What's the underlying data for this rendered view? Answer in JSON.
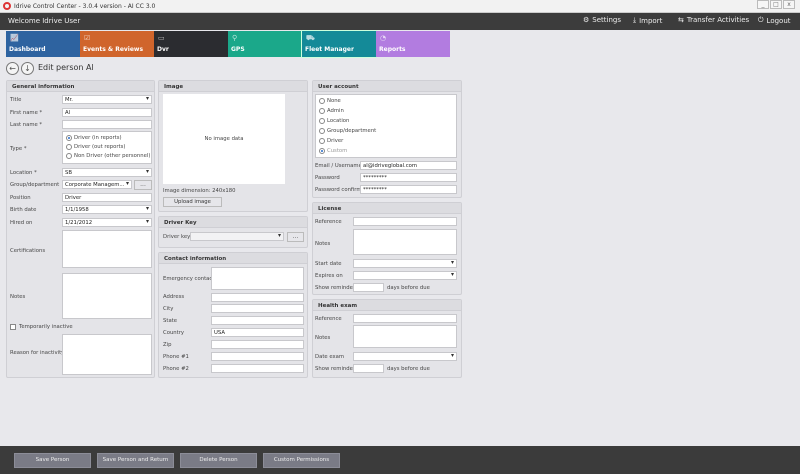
{
  "window": {
    "title": "Idrive Control Center - 3.0.4 version - AI CC 3.0",
    "minimize": "_",
    "maximize": "□",
    "close": "x"
  },
  "header": {
    "welcome": "Welcome Idrive User",
    "settings": "Settings",
    "import": "Import",
    "transfer": "Transfer Activities",
    "logout": "Logout"
  },
  "tiles": [
    {
      "label": "Dashboard",
      "color": "#2e63a0",
      "icon": "chart-icon"
    },
    {
      "label": "Events & Reviews",
      "color": "#d0652c",
      "icon": "clipboard-icon"
    },
    {
      "label": "Dvr",
      "color": "#2b2c30",
      "icon": "dvr-icon"
    },
    {
      "label": "GPS",
      "color": "#1ba88a",
      "icon": "map-pin-icon"
    },
    {
      "label": "Fleet Manager",
      "color": "#148a98",
      "icon": "truck-icon"
    },
    {
      "label": "Reports",
      "color": "#b27ce0",
      "icon": "pie-chart-icon"
    }
  ],
  "page": {
    "title": "Edit person Al"
  },
  "general": {
    "heading": "General information",
    "title_label": "Title",
    "title_value": "Mr.",
    "first_label": "First name *",
    "first_value": "Al",
    "last_label": "Last name *",
    "last_value": "",
    "type_label": "Type *",
    "type_options": [
      "Driver (in reports)",
      "Driver (out reports)",
      "Non Driver (other personnel)"
    ],
    "type_selected": 0,
    "location_label": "Location *",
    "location_value": "SB",
    "group_label": "Group/department",
    "group_value": "Corporate Managem...",
    "group_btn": "...",
    "position_label": "Position",
    "position_value": "Driver",
    "birth_label": "Birth date",
    "birth_value": "1/1/1958",
    "hired_label": "Hired on",
    "hired_value": "1/21/2012",
    "cert_label": "Certifications",
    "notes_label": "Notes",
    "inactive_label": "Temporarily inactive",
    "reason_label": "Reason for inactivity"
  },
  "image": {
    "heading": "Image",
    "placeholder": "No image data",
    "dimension": "Image dimension:  240x180",
    "upload": "Upload image"
  },
  "driverkey": {
    "heading": "Driver Key",
    "label": "Driver key",
    "btn": "..."
  },
  "contact": {
    "heading": "Contact information",
    "emergency": "Emergency contact",
    "address": "Address",
    "city": "City",
    "state": "State",
    "country": "Country",
    "country_value": "USA",
    "zip": "Zip",
    "phone1": "Phone #1",
    "phone2": "Phone #2"
  },
  "account": {
    "heading": "User account",
    "roles": [
      "None",
      "Admin",
      "Location",
      "Group/department",
      "Driver",
      "Custom"
    ],
    "selected": 5,
    "email_label": "Email / Username",
    "email_value": "al@idriveglobal.com",
    "password_label": "Password",
    "password_value": "*********",
    "confirm_label": "Password confirm",
    "confirm_value": "*********"
  },
  "license": {
    "heading": "License",
    "reference": "Reference",
    "notes": "Notes",
    "start": "Start date",
    "expires": "Expires on",
    "reminder": "Show reminder",
    "days": "days before due"
  },
  "health": {
    "heading": "Health exam",
    "reference": "Reference",
    "notes": "Notes",
    "date": "Date exam",
    "reminder": "Show reminder",
    "days": "days before due"
  },
  "actions": {
    "save": "Save Person",
    "save_return": "Save Person and Return",
    "delete": "Delete Person",
    "permissions": "Custom Permissions"
  }
}
